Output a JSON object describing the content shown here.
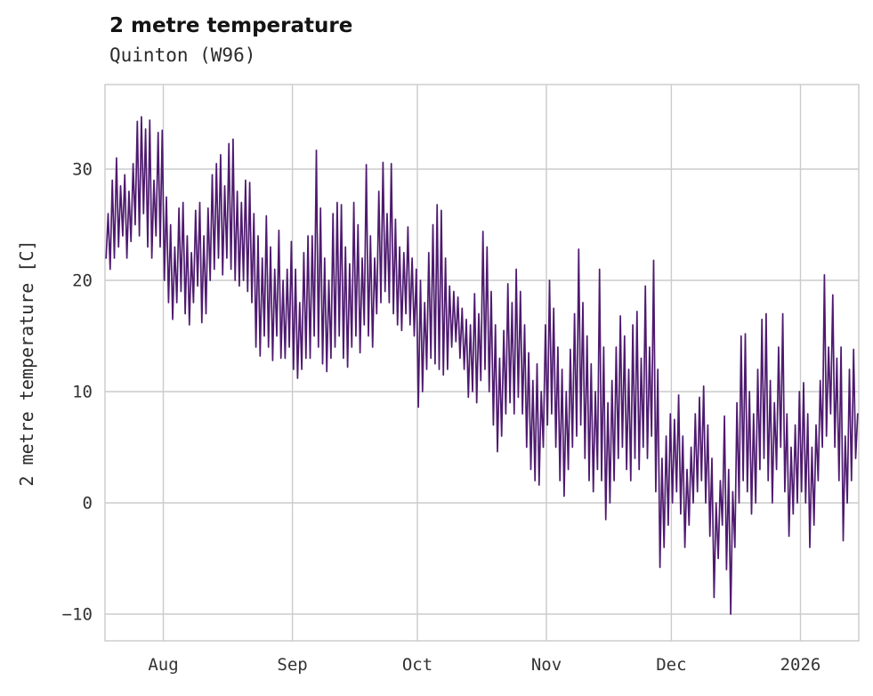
{
  "title": "2 metre temperature",
  "subtitle": "Quinton (W96)",
  "chart_data": {
    "type": "line",
    "title": "2 metre temperature",
    "subtitle": "Quinton (W96)",
    "xlabel": "",
    "ylabel": "2 metre temperature [C]",
    "grid": true,
    "grid_color": "#cbcbcb",
    "line_color": "#4e1a6f",
    "tick_color": "#333333",
    "ylim": [
      -12.4,
      37.6
    ],
    "y_ticks": [
      -10,
      0,
      10,
      20,
      30
    ],
    "x_range_days": [
      0,
      181
    ],
    "x_ticks": [
      {
        "label": "Aug",
        "day": 14
      },
      {
        "label": "Sep",
        "day": 45
      },
      {
        "label": "Oct",
        "day": 75
      },
      {
        "label": "Nov",
        "day": 106
      },
      {
        "label": "Dec",
        "day": 136
      },
      {
        "label": "2026",
        "day": 167
      }
    ],
    "legend": null,
    "series": [
      {
        "name": "2 metre temperature",
        "unit": "C",
        "sampling": "two values per day (daily min, daily max), day 0 = 18 July, through mid January 2026",
        "values": [
          22,
          26,
          21,
          29,
          22,
          31,
          23,
          28.5,
          24,
          29.5,
          22,
          28,
          23.5,
          30.5,
          25,
          34.3,
          24,
          34.7,
          26,
          33.6,
          23,
          34.4,
          22,
          29,
          24,
          33.3,
          23,
          33.5,
          20,
          27.5,
          18,
          25,
          16.5,
          23,
          18,
          26.5,
          19,
          27,
          17,
          24,
          16,
          22.5,
          18,
          26.3,
          19.5,
          27,
          16.2,
          24,
          17,
          26.5,
          20,
          29.5,
          21,
          30.5,
          22,
          31.3,
          20.5,
          28.5,
          22,
          32.3,
          21,
          32.7,
          20,
          28,
          19.5,
          27,
          20,
          29,
          19,
          28.8,
          18,
          26,
          14,
          24,
          13.2,
          22,
          15,
          25.8,
          14,
          23,
          12.8,
          21,
          15,
          24.5,
          13,
          20,
          13,
          21,
          14,
          23.5,
          12,
          21,
          11.2,
          18,
          12,
          22.5,
          13,
          24,
          13,
          24,
          15,
          31.7,
          14,
          26.5,
          12.5,
          22,
          11.8,
          20,
          13,
          26,
          14,
          27,
          15,
          26.8,
          13,
          23,
          12.2,
          21.5,
          14,
          27,
          15,
          25,
          13.5,
          22,
          16,
          30.4,
          15,
          24,
          14,
          22,
          17,
          28,
          18,
          30.6,
          19,
          26,
          18,
          30.5,
          17,
          25.5,
          16,
          23,
          15.5,
          22.5,
          17,
          24.8,
          16,
          22,
          15,
          21,
          8.6,
          20,
          10,
          18,
          12,
          22.5,
          13,
          25,
          12.5,
          26.8,
          12,
          26.3,
          11.5,
          22,
          12,
          19.5,
          14,
          19,
          14.5,
          18.5,
          13,
          17.5,
          12,
          16.5,
          9.5,
          16,
          10,
          18.8,
          9,
          17,
          11,
          24.4,
          12,
          23,
          10,
          19,
          7,
          16,
          4.6,
          13,
          6,
          15.5,
          8,
          19.7,
          9,
          18,
          8,
          21,
          9.5,
          19,
          8,
          16,
          5,
          13.5,
          3,
          11,
          2,
          12.5,
          1.6,
          10,
          5,
          16,
          7,
          20,
          8,
          17.5,
          5,
          14,
          2,
          12,
          0.6,
          10,
          3,
          13.8,
          5,
          17,
          6,
          22.8,
          7,
          18,
          4,
          15,
          2,
          12.5,
          1,
          10,
          3,
          21,
          2,
          14,
          -1.5,
          9,
          0,
          11,
          2,
          14,
          4,
          16.8,
          5,
          15,
          3,
          12,
          2,
          16,
          4,
          17.2,
          3,
          13,
          5,
          19.5,
          4,
          14,
          6,
          21.8,
          1,
          12,
          -5.8,
          4,
          -4,
          6,
          -2,
          8,
          0,
          7.5,
          1,
          9.7,
          -1,
          6,
          -4,
          3,
          -2,
          5,
          0,
          8,
          1,
          9.5,
          2,
          10.5,
          0,
          7,
          -3,
          4,
          -8.5,
          0,
          -5,
          2,
          -2,
          7.8,
          -6,
          3,
          -10,
          1,
          -4,
          9,
          0,
          15,
          2,
          15.2,
          1,
          10,
          -1,
          8,
          0,
          12,
          3,
          16.5,
          4,
          17,
          2,
          11,
          0,
          9,
          3,
          14,
          5,
          17,
          1,
          8,
          -3,
          5,
          -1,
          7,
          0,
          10,
          1,
          10.8,
          0,
          8,
          -4,
          5,
          -2,
          7,
          2,
          11,
          5,
          20.5,
          6,
          14,
          8,
          18.7,
          5,
          13,
          2,
          14,
          -3.4,
          6,
          0,
          12,
          2,
          13.8,
          4,
          8
        ]
      }
    ]
  }
}
